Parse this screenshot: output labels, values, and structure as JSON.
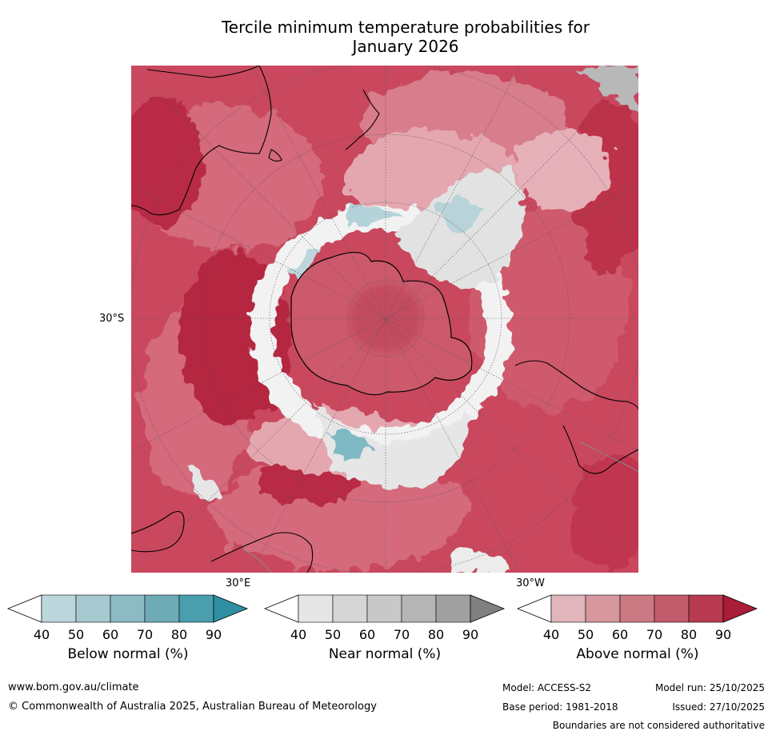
{
  "title": {
    "line1": "Tercile minimum temperature probabilities for",
    "line2": "January 2026"
  },
  "map": {
    "labels": {
      "lat_30s": "30°S",
      "lon_30e": "30°E",
      "lon_30w": "30°W"
    },
    "colors": {
      "ocean_above_strong": "#be2c48",
      "above_med": "#d86878",
      "above_light": "#e6a3ad",
      "near_normal": "#dcdcdc",
      "below_normal": "#78b4c0",
      "coastline": "#000000",
      "boundary": "#888888"
    }
  },
  "legends": [
    {
      "title": "Below normal (%)",
      "ticks": [
        "40",
        "50",
        "60",
        "70",
        "80",
        "90"
      ],
      "colors": [
        "#ffffff",
        "#bdd6dc",
        "#a6c8cf",
        "#8dbac3",
        "#6eabb7",
        "#4a9eae",
        "#2f8fa2"
      ]
    },
    {
      "title": "Near normal (%)",
      "ticks": [
        "40",
        "50",
        "60",
        "70",
        "80",
        "90"
      ],
      "colors": [
        "#ffffff",
        "#e6e6e6",
        "#d6d6d6",
        "#c8c8c8",
        "#b6b6b6",
        "#a0a0a0",
        "#808080"
      ]
    },
    {
      "title": "Above normal (%)",
      "ticks": [
        "40",
        "50",
        "60",
        "70",
        "80",
        "90"
      ],
      "colors": [
        "#ffffff",
        "#e0b5bb",
        "#d6979f",
        "#cb7a84",
        "#c25c6c",
        "#b83a50",
        "#aa1c38"
      ]
    }
  ],
  "footer": {
    "url": "www.bom.gov.au/climate",
    "copyright": "© Commonwealth of Australia 2025, Australian Bureau of Meteorology",
    "model": "Model: ACCESS-S2",
    "base_period": "Base period: 1981-2018",
    "model_run": "Model run: 25/10/2025",
    "issued": "Issued: 27/10/2025",
    "disclaimer": "Boundaries are not considered authoritative"
  }
}
